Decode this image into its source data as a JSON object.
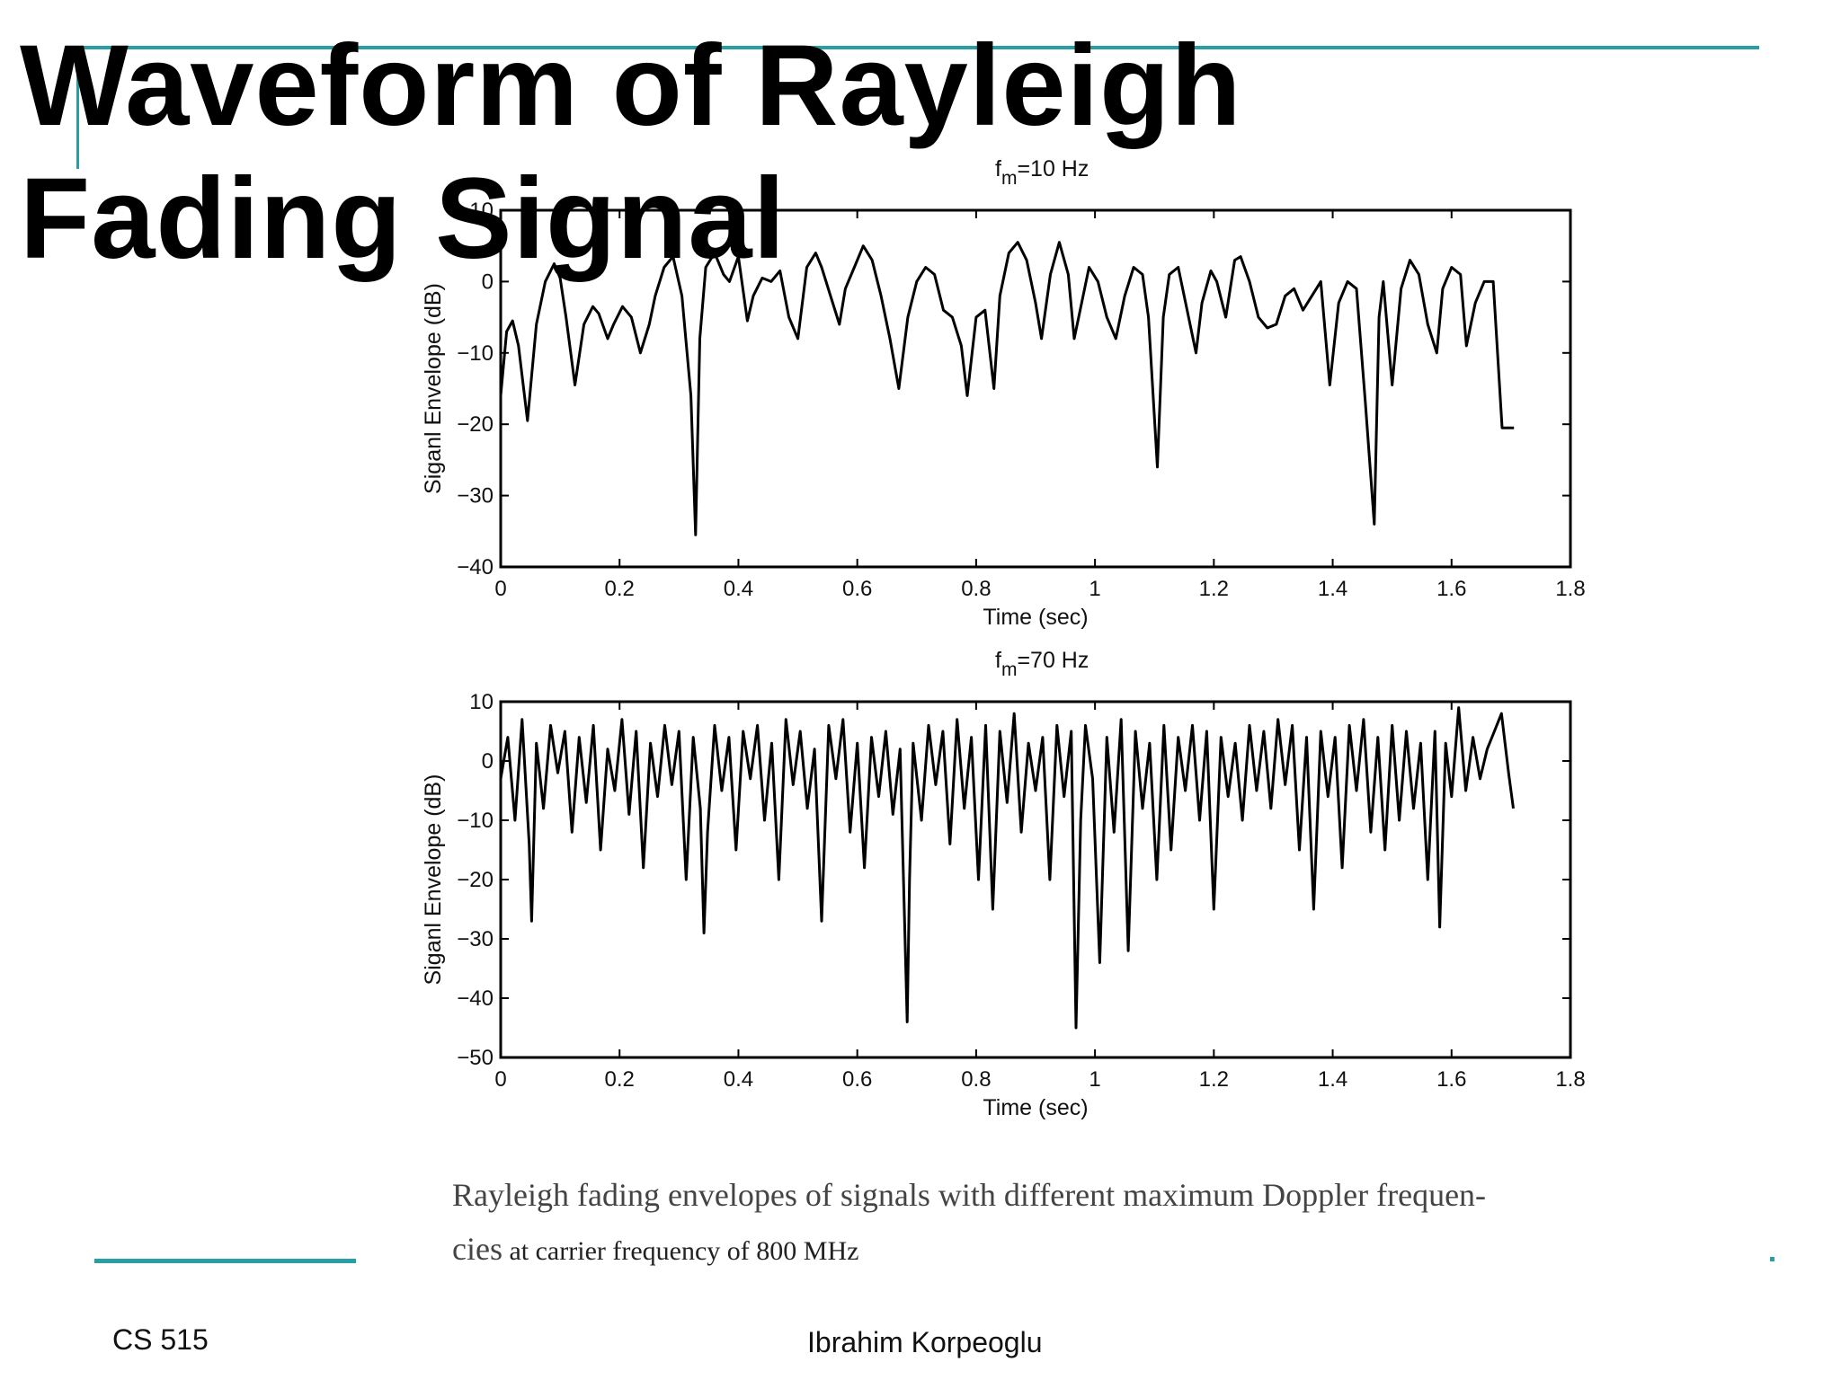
{
  "slide": {
    "title_line1": "Waveform of Rayleigh",
    "title_line2": "Fading Signal",
    "caption_line1": "Rayleigh fading envelopes of signals with different maximum Doppler frequen-",
    "caption_line2a": "cies",
    "caption_line2b": " at carrier frequency of 800 MHz",
    "footer_left": "CS 515",
    "footer_center": "Ibrahim Korpeoglu",
    "accent_color": "#2a9fa3"
  },
  "chart_data": [
    {
      "type": "line",
      "title_prefix": "f",
      "title_subscript": "m",
      "title_suffix": "=10 Hz",
      "xlabel": "Time (sec)",
      "ylabel": "Siganl Envelope (dB)",
      "xlim": [
        0,
        1.8
      ],
      "ylim": [
        -40,
        10
      ],
      "xticks": [
        0,
        0.2,
        0.4,
        0.6,
        0.8,
        1,
        1.2,
        1.4,
        1.6,
        1.8
      ],
      "xtick_labels": [
        "0",
        "0.2",
        "0.4",
        "0.6",
        "0.8",
        "1",
        "1.2",
        "1.4",
        "1.6",
        "1.8"
      ],
      "yticks": [
        -40,
        -30,
        -20,
        -10,
        0,
        10
      ],
      "ytick_labels": [
        "−40",
        "−30",
        "−20",
        "−10",
        "0",
        "10"
      ],
      "grid": false,
      "series": [
        {
          "x": [
            0,
            0.01,
            0.02,
            0.03,
            0.045,
            0.05,
            0.06,
            0.075,
            0.09,
            0.1,
            0.11,
            0.125,
            0.14,
            0.155,
            0.165,
            0.18,
            0.19,
            0.205,
            0.22,
            0.235,
            0.25,
            0.26,
            0.275,
            0.29,
            0.305,
            0.32,
            0.328,
            0.335,
            0.345,
            0.36,
            0.375,
            0.385,
            0.4,
            0.415,
            0.425,
            0.44,
            0.455,
            0.47,
            0.485,
            0.5,
            0.515,
            0.53,
            0.54,
            0.555,
            0.57,
            0.58,
            0.595,
            0.61,
            0.625,
            0.64,
            0.655,
            0.67,
            0.685,
            0.7,
            0.715,
            0.73,
            0.745,
            0.76,
            0.775,
            0.785,
            0.8,
            0.815,
            0.83,
            0.84,
            0.855,
            0.87,
            0.885,
            0.9,
            0.91,
            0.925,
            0.94,
            0.955,
            0.965,
            0.98,
            0.99,
            1.005,
            1.02,
            1.035,
            1.05,
            1.065,
            1.08,
            1.09,
            1.105,
            1.115,
            1.125,
            1.14,
            1.155,
            1.17,
            1.18,
            1.195,
            1.205,
            1.22,
            1.235,
            1.245,
            1.26,
            1.275,
            1.29,
            1.305,
            1.32,
            1.335,
            1.35,
            1.365,
            1.38,
            1.395,
            1.41,
            1.425,
            1.44,
            1.455,
            1.47,
            1.478,
            1.485,
            1.5,
            1.515,
            1.53,
            1.545,
            1.56,
            1.575,
            1.585,
            1.6,
            1.615,
            1.625,
            1.64,
            1.655,
            1.67,
            1.685,
            1.7,
            1.705
          ],
          "y": [
            -16,
            -7,
            -5.5,
            -9,
            -19.5,
            -15,
            -6,
            0,
            2.5,
            0.5,
            -5,
            -14.5,
            -6,
            -3.5,
            -4.5,
            -8,
            -6,
            -3.5,
            -5,
            -10,
            -6,
            -2,
            2,
            3.5,
            -2,
            -16,
            -35.5,
            -8,
            2,
            4,
            1,
            0,
            3.5,
            -5.5,
            -2,
            0.5,
            0,
            1.5,
            -5,
            -8,
            2,
            4,
            2,
            -2,
            -6,
            -1,
            2,
            5,
            3,
            -2,
            -8,
            -15,
            -5,
            0,
            2,
            1,
            -4,
            -5,
            -9,
            -16,
            -5,
            -4,
            -15,
            -2,
            4,
            5.5,
            3,
            -3,
            -8,
            1,
            5.5,
            1,
            -8,
            -2,
            2,
            0,
            -5,
            -8,
            -2,
            2,
            1,
            -5,
            -26,
            -5,
            1,
            2,
            -4,
            -10,
            -3,
            1.5,
            0,
            -5,
            3,
            3.5,
            0,
            -5,
            -6.5,
            -6,
            -2,
            -1,
            -4,
            -2,
            0,
            -14.5,
            -3,
            0,
            -1,
            -17,
            -34,
            -5,
            0,
            -14.5,
            -1,
            3,
            1,
            -6,
            -10,
            -1,
            2,
            1,
            -9,
            -3,
            0,
            0,
            -20.5,
            -20.5,
            -20.5
          ]
        }
      ]
    },
    {
      "type": "line",
      "title_prefix": "f",
      "title_subscript": "m",
      "title_suffix": "=70 Hz",
      "xlabel": "Time (sec)",
      "ylabel": "Siganl Envelope (dB)",
      "xlim": [
        0,
        1.8
      ],
      "ylim": [
        -50,
        10
      ],
      "xticks": [
        0,
        0.2,
        0.4,
        0.6,
        0.8,
        1,
        1.2,
        1.4,
        1.6,
        1.8
      ],
      "xtick_labels": [
        "0",
        "0.2",
        "0.4",
        "0.6",
        "0.8",
        "1",
        "1.2",
        "1.4",
        "1.6",
        "1.8"
      ],
      "yticks": [
        -50,
        -40,
        -30,
        -20,
        -10,
        0,
        10
      ],
      "ytick_labels": [
        "−50",
        "−40",
        "−30",
        "−20",
        "−10",
        "0",
        "10"
      ],
      "grid": false,
      "series": [
        {
          "x": [
            0,
            0.012,
            0.024,
            0.036,
            0.048,
            0.052,
            0.06,
            0.072,
            0.084,
            0.096,
            0.108,
            0.12,
            0.132,
            0.144,
            0.156,
            0.168,
            0.18,
            0.192,
            0.204,
            0.216,
            0.228,
            0.24,
            0.252,
            0.264,
            0.276,
            0.288,
            0.3,
            0.312,
            0.324,
            0.336,
            0.342,
            0.348,
            0.36,
            0.372,
            0.384,
            0.396,
            0.408,
            0.42,
            0.432,
            0.444,
            0.456,
            0.468,
            0.48,
            0.492,
            0.504,
            0.516,
            0.528,
            0.54,
            0.552,
            0.564,
            0.576,
            0.588,
            0.6,
            0.612,
            0.624,
            0.636,
            0.648,
            0.66,
            0.672,
            0.684,
            0.688,
            0.694,
            0.708,
            0.72,
            0.732,
            0.744,
            0.756,
            0.768,
            0.78,
            0.792,
            0.804,
            0.816,
            0.828,
            0.84,
            0.852,
            0.864,
            0.876,
            0.888,
            0.9,
            0.912,
            0.924,
            0.936,
            0.948,
            0.96,
            0.968,
            0.976,
            0.984,
            0.996,
            1.008,
            1.02,
            1.032,
            1.044,
            1.056,
            1.068,
            1.08,
            1.092,
            1.104,
            1.116,
            1.128,
            1.14,
            1.152,
            1.164,
            1.176,
            1.188,
            1.2,
            1.212,
            1.224,
            1.236,
            1.248,
            1.26,
            1.272,
            1.284,
            1.296,
            1.308,
            1.32,
            1.332,
            1.344,
            1.356,
            1.368,
            1.38,
            1.392,
            1.404,
            1.416,
            1.428,
            1.44,
            1.452,
            1.464,
            1.476,
            1.488,
            1.5,
            1.512,
            1.524,
            1.536,
            1.548,
            1.56,
            1.572,
            1.58,
            1.59,
            1.6,
            1.612,
            1.624,
            1.636,
            1.648,
            1.66,
            1.672,
            1.684,
            1.696,
            1.704
          ],
          "y": [
            -3,
            4,
            -10,
            7,
            -14,
            -27,
            3,
            -8,
            6,
            -2,
            5,
            -12,
            4,
            -7,
            6,
            -15,
            2,
            -5,
            7,
            -9,
            5,
            -18,
            3,
            -6,
            6,
            -4,
            5,
            -20,
            4,
            -8,
            -29,
            -12,
            6,
            -5,
            4,
            -15,
            5,
            -3,
            6,
            -10,
            3,
            -20,
            7,
            -4,
            5,
            -8,
            2,
            -27,
            6,
            -3,
            7,
            -12,
            3,
            -18,
            4,
            -6,
            5,
            -9,
            2,
            -44,
            -20,
            3,
            -10,
            6,
            -4,
            5,
            -14,
            7,
            -8,
            4,
            -20,
            6,
            -25,
            5,
            -7,
            8,
            -12,
            3,
            -5,
            4,
            -20,
            6,
            -6,
            5,
            -45,
            -10,
            6,
            -3,
            -34,
            4,
            -12,
            7,
            -32,
            5,
            -8,
            3,
            -20,
            6,
            -15,
            4,
            -5,
            6,
            -10,
            5,
            -25,
            4,
            -6,
            3,
            -10,
            6,
            -5,
            5,
            -8,
            7,
            -4,
            6,
            -15,
            4,
            -25,
            5,
            -6,
            4,
            -18,
            6,
            -5,
            7,
            -12,
            4,
            -15,
            6,
            -10,
            5,
            -8,
            3,
            -20,
            5,
            -28,
            3,
            -6,
            9,
            -5,
            4,
            -3,
            2,
            5,
            8,
            -2,
            -8
          ]
        }
      ]
    }
  ]
}
